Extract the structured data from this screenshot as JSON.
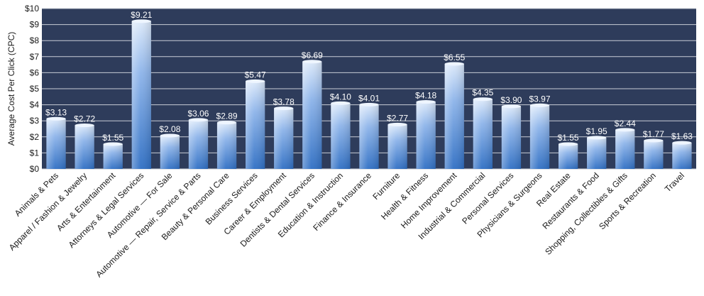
{
  "chart_data": {
    "type": "bar",
    "title": "",
    "xlabel": "",
    "ylabel": "Average Cost Per Click (CPC)",
    "ylim": [
      0,
      10
    ],
    "yticks": [
      "$0",
      "$1",
      "$2",
      "$3",
      "$4",
      "$5",
      "$6",
      "$7",
      "$8",
      "$9",
      "$10"
    ],
    "grid": true,
    "legend": "none",
    "categories": [
      "Animals & Pets",
      "Apparel / Fashion & Jewelry",
      "Arts & Entertainment",
      "Attorneys & Legal Services",
      "Automotive — For Sale",
      "Automotive — Repair, Service & Parts",
      "Beauty & Personal Care",
      "Business Services",
      "Career & Employment",
      "Dentists & Dental Services",
      "Education & Instruction",
      "Finance & Insurance",
      "Furniture",
      "Health & Fitness",
      "Home Improvement",
      "Industrial & Commercial",
      "Personal Services",
      "Physicians & Surgeons",
      "Real Estate",
      "Restaurants & Food",
      "Shopping, Collectibles & Gifts",
      "Sports & Recreation",
      "Travel"
    ],
    "values": [
      3.13,
      2.72,
      1.55,
      9.21,
      2.08,
      3.06,
      2.89,
      5.47,
      3.78,
      6.69,
      4.1,
      4.01,
      2.77,
      4.18,
      6.55,
      4.35,
      3.9,
      3.97,
      1.55,
      1.95,
      2.44,
      1.77,
      1.63
    ],
    "data_labels": [
      "$3.13",
      "$2.72",
      "$1.55",
      "$9.21",
      "$2.08",
      "$3.06",
      "$2.89",
      "$5.47",
      "$3.78",
      "$6.69",
      "$4.10",
      "$4.01",
      "$2.77",
      "$4.18",
      "$6.55",
      "$4.35",
      "$3.90",
      "$3.97",
      "$1.55",
      "$1.95",
      "$2.44",
      "$1.77",
      "$1.63"
    ],
    "colors": {
      "plot_background": "#2e3c5b",
      "gridline": "#c8ccd6",
      "bar_light": "#dce9fa",
      "bar_mid": "#8db4ea",
      "bar_dark": "#2f6fc4",
      "data_label": "#ffffff"
    }
  }
}
